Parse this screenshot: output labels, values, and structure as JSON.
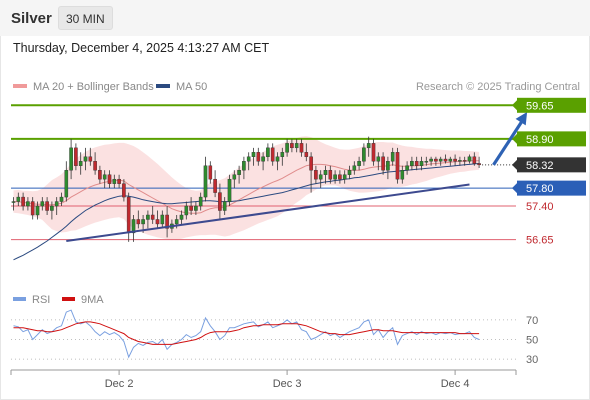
{
  "header": {
    "symbol": "Silver",
    "timeframe": "30 MIN",
    "datetime": "Thursday, December 4, 2025 4:13:27 AM CET"
  },
  "colors": {
    "resistance": "#5aa000",
    "support": "#e0606f",
    "pivot": "#2b5fb7",
    "current": "#333333",
    "trend": "#3d4a8f",
    "arrow": "#2e62b4",
    "bollinger": "#f7c8c8",
    "ma20": "#e08c8c",
    "ma50": "#2b4a80",
    "candle_up": "#2e8b2e",
    "candle_down": "#c0292f",
    "rsi": "#7aa0e0",
    "rsi_ma": "#d01010"
  },
  "chart_data": [
    {
      "type": "candlestick",
      "legend": [
        {
          "name": "MA 20 + Bollinger Bands",
          "color": "#f09a9a"
        },
        {
          "name": "MA 50",
          "color": "#2b4a80"
        }
      ],
      "legend_placement": "top-left",
      "credit": "Research © 2025 Trading Central",
      "ylim": [
        56.15,
        59.88
      ],
      "levels": [
        {
          "value": 59.65,
          "label": "59.65",
          "kind": "resistance"
        },
        {
          "value": 58.9,
          "label": "58.90",
          "kind": "resistance"
        },
        {
          "value": 58.32,
          "label": "58.32",
          "kind": "current"
        },
        {
          "value": 57.8,
          "label": "57.80",
          "kind": "pivot"
        },
        {
          "value": 57.4,
          "label": "57.40",
          "kind": "support"
        },
        {
          "value": 56.65,
          "label": "56.65",
          "kind": "support"
        }
      ],
      "trendline": {
        "from": [
          11,
          56.62
        ],
        "to": [
          95,
          57.88
        ]
      },
      "arrow": {
        "from": [
          100,
          58.32
        ],
        "to": [
          107,
          59.5
        ]
      },
      "xlabels": [
        {
          "index": 22,
          "label": "Dec 2"
        },
        {
          "index": 57,
          "label": "Dec 3"
        },
        {
          "index": 92,
          "label": "Dec 4"
        }
      ],
      "ohlc": [
        [
          57.5,
          57.6,
          57.3,
          57.5
        ],
        [
          57.5,
          57.7,
          57.4,
          57.6
        ],
        [
          57.6,
          57.7,
          57.3,
          57.4
        ],
        [
          57.4,
          57.6,
          57.3,
          57.5
        ],
        [
          57.5,
          57.6,
          57.1,
          57.2
        ],
        [
          57.2,
          57.5,
          57.1,
          57.4
        ],
        [
          57.4,
          57.6,
          57.3,
          57.5
        ],
        [
          57.5,
          57.6,
          57.2,
          57.3
        ],
        [
          57.3,
          57.5,
          57.1,
          57.4
        ],
        [
          57.4,
          57.6,
          57.2,
          57.5
        ],
        [
          57.5,
          57.7,
          57.4,
          57.6
        ],
        [
          57.6,
          58.4,
          57.5,
          58.2
        ],
        [
          58.2,
          58.9,
          58.0,
          58.7
        ],
        [
          58.7,
          58.8,
          58.2,
          58.3
        ],
        [
          58.3,
          58.6,
          58.1,
          58.4
        ],
        [
          58.4,
          58.7,
          58.2,
          58.5
        ],
        [
          58.5,
          58.7,
          58.3,
          58.4
        ],
        [
          58.4,
          58.6,
          58.1,
          58.2
        ],
        [
          58.2,
          58.3,
          57.9,
          58.0
        ],
        [
          58.0,
          58.2,
          57.8,
          58.1
        ],
        [
          58.1,
          58.2,
          57.8,
          57.9
        ],
        [
          57.9,
          58.1,
          57.8,
          58.0
        ],
        [
          58.0,
          58.1,
          57.8,
          57.9
        ],
        [
          57.9,
          58.0,
          57.5,
          57.6
        ],
        [
          57.6,
          57.7,
          56.6,
          56.8
        ],
        [
          56.8,
          57.2,
          56.6,
          57.1
        ],
        [
          57.1,
          57.3,
          56.9,
          57.0
        ],
        [
          57.0,
          57.2,
          56.8,
          57.1
        ],
        [
          57.1,
          57.3,
          56.9,
          57.2
        ],
        [
          57.2,
          57.4,
          57.0,
          57.1
        ],
        [
          57.1,
          57.3,
          56.9,
          57.0
        ],
        [
          57.0,
          57.3,
          56.9,
          57.2
        ],
        [
          57.2,
          57.4,
          56.7,
          56.9
        ],
        [
          56.9,
          57.1,
          56.8,
          57.0
        ],
        [
          57.0,
          57.2,
          56.9,
          57.1
        ],
        [
          57.1,
          57.3,
          57.0,
          57.2
        ],
        [
          57.2,
          57.5,
          57.1,
          57.4
        ],
        [
          57.4,
          57.6,
          57.2,
          57.3
        ],
        [
          57.3,
          57.5,
          57.2,
          57.4
        ],
        [
          57.4,
          57.7,
          57.3,
          57.6
        ],
        [
          57.6,
          58.5,
          57.5,
          58.3
        ],
        [
          58.3,
          58.4,
          57.9,
          58.0
        ],
        [
          58.0,
          58.2,
          57.6,
          57.7
        ],
        [
          57.7,
          57.9,
          57.1,
          57.3
        ],
        [
          57.3,
          57.6,
          57.2,
          57.5
        ],
        [
          57.5,
          58.1,
          57.4,
          58.0
        ],
        [
          58.0,
          58.2,
          57.8,
          58.1
        ],
        [
          58.1,
          58.3,
          57.9,
          58.2
        ],
        [
          58.2,
          58.5,
          58.0,
          58.4
        ],
        [
          58.4,
          58.6,
          58.2,
          58.5
        ],
        [
          58.5,
          58.7,
          58.3,
          58.6
        ],
        [
          58.6,
          58.7,
          58.3,
          58.4
        ],
        [
          58.4,
          58.6,
          58.2,
          58.5
        ],
        [
          58.5,
          58.8,
          58.4,
          58.7
        ],
        [
          58.7,
          58.8,
          58.3,
          58.4
        ],
        [
          58.4,
          58.6,
          58.2,
          58.5
        ],
        [
          58.5,
          58.7,
          58.3,
          58.6
        ],
        [
          58.6,
          58.9,
          58.5,
          58.8
        ],
        [
          58.8,
          58.9,
          58.6,
          58.7
        ],
        [
          58.7,
          58.9,
          58.6,
          58.8
        ],
        [
          58.8,
          58.9,
          58.5,
          58.6
        ],
        [
          58.6,
          58.8,
          58.4,
          58.5
        ],
        [
          58.5,
          58.6,
          57.7,
          58.2
        ],
        [
          58.2,
          58.3,
          57.9,
          58.0
        ],
        [
          58.0,
          58.2,
          57.8,
          58.1
        ],
        [
          58.1,
          58.3,
          57.9,
          58.2
        ],
        [
          58.2,
          58.3,
          57.9,
          58.0
        ],
        [
          58.0,
          58.2,
          57.9,
          58.1
        ],
        [
          58.1,
          58.2,
          57.9,
          58.0
        ],
        [
          58.0,
          58.2,
          57.9,
          58.1
        ],
        [
          58.1,
          58.3,
          58.0,
          58.2
        ],
        [
          58.2,
          58.4,
          58.1,
          58.3
        ],
        [
          58.3,
          58.5,
          58.2,
          58.4
        ],
        [
          58.4,
          58.8,
          58.3,
          58.7
        ],
        [
          58.7,
          58.95,
          58.5,
          58.8
        ],
        [
          58.8,
          58.9,
          58.3,
          58.4
        ],
        [
          58.4,
          58.6,
          58.2,
          58.5
        ],
        [
          58.5,
          58.6,
          58.1,
          58.2
        ],
        [
          58.2,
          58.5,
          58.0,
          58.4
        ],
        [
          58.4,
          58.7,
          58.3,
          58.6
        ],
        [
          58.6,
          58.7,
          57.9,
          58.0
        ],
        [
          58.0,
          58.3,
          57.9,
          58.2
        ],
        [
          58.2,
          58.4,
          58.1,
          58.3
        ],
        [
          58.3,
          58.5,
          58.2,
          58.4
        ],
        [
          58.4,
          58.5,
          58.2,
          58.3
        ],
        [
          58.3,
          58.5,
          58.2,
          58.4
        ],
        [
          58.4,
          58.5,
          58.3,
          58.4
        ],
        [
          58.4,
          58.5,
          58.3,
          58.45
        ],
        [
          58.45,
          58.5,
          58.3,
          58.4
        ],
        [
          58.4,
          58.5,
          58.3,
          58.45
        ],
        [
          58.45,
          58.55,
          58.35,
          58.4
        ],
        [
          58.4,
          58.5,
          58.3,
          58.45
        ],
        [
          58.45,
          58.55,
          58.3,
          58.4
        ],
        [
          58.4,
          58.5,
          58.3,
          58.42
        ],
        [
          58.42,
          58.5,
          58.3,
          58.4
        ],
        [
          58.4,
          58.55,
          58.35,
          58.5
        ],
        [
          58.5,
          58.6,
          58.3,
          58.35
        ],
        [
          58.35,
          58.5,
          58.25,
          58.32
        ]
      ],
      "ma50": [
        56.2,
        56.25,
        56.3,
        56.36,
        56.42,
        56.48,
        56.55,
        56.62,
        56.7,
        56.78,
        56.86,
        56.95,
        57.05,
        57.14,
        57.22,
        57.3,
        57.36,
        57.42,
        57.47,
        57.52,
        57.56,
        57.59,
        57.62,
        57.63,
        57.62,
        57.6,
        57.57,
        57.54,
        57.52,
        57.5,
        57.48,
        57.46,
        57.45,
        57.45,
        57.46,
        57.47,
        57.48,
        57.49,
        57.5,
        57.51,
        57.52,
        57.52,
        57.51,
        57.5,
        57.5,
        57.5,
        57.51,
        57.52,
        57.54,
        57.56,
        57.58,
        57.6,
        57.62,
        57.64,
        57.66,
        57.68,
        57.7,
        57.73,
        57.76,
        57.79,
        57.82,
        57.85,
        57.88,
        57.9,
        57.92,
        57.94,
        57.95,
        57.97,
        57.98,
        58.0,
        58.01,
        58.03,
        58.04,
        58.06,
        58.08,
        58.1,
        58.12,
        58.14,
        58.16,
        58.17,
        58.18,
        58.19,
        58.2,
        58.21,
        58.22,
        58.23,
        58.24,
        58.25,
        58.26,
        58.27,
        58.28,
        58.29,
        58.3,
        58.31,
        58.32,
        58.33,
        58.34,
        58.35
      ],
      "ma20": [
        57.5,
        57.5,
        57.48,
        57.47,
        57.45,
        57.44,
        57.44,
        57.43,
        57.43,
        57.44,
        57.46,
        57.52,
        57.6,
        57.66,
        57.72,
        57.78,
        57.83,
        57.87,
        57.9,
        57.93,
        57.95,
        57.97,
        57.98,
        57.96,
        57.88,
        57.82,
        57.76,
        57.7,
        57.64,
        57.58,
        57.52,
        57.46,
        57.4,
        57.34,
        57.3,
        57.27,
        57.25,
        57.24,
        57.24,
        57.25,
        57.3,
        57.34,
        57.36,
        57.36,
        57.37,
        57.42,
        57.48,
        57.54,
        57.6,
        57.66,
        57.72,
        57.78,
        57.83,
        57.88,
        57.93,
        57.97,
        58.02,
        58.08,
        58.14,
        58.2,
        58.25,
        58.3,
        58.32,
        58.33,
        58.33,
        58.32,
        58.3,
        58.28,
        58.25,
        58.22,
        58.2,
        58.2,
        58.2,
        58.22,
        58.25,
        58.27,
        58.28,
        58.29,
        58.3,
        58.32,
        58.3,
        58.29,
        58.29,
        58.3,
        58.3,
        58.31,
        58.32,
        58.34,
        58.35,
        58.36,
        58.37,
        58.38,
        58.39,
        58.4,
        58.4,
        58.41,
        58.41,
        58.41
      ],
      "bb_width": [
        0.25,
        0.26,
        0.26,
        0.27,
        0.28,
        0.3,
        0.35,
        0.45,
        0.55,
        0.6,
        0.65,
        0.7,
        0.75,
        0.8,
        0.82,
        0.83,
        0.84,
        0.84,
        0.84,
        0.84,
        0.83,
        0.83,
        0.83,
        0.85,
        0.9,
        0.92,
        0.92,
        0.9,
        0.88,
        0.85,
        0.82,
        0.78,
        0.74,
        0.7,
        0.65,
        0.6,
        0.55,
        0.52,
        0.5,
        0.5,
        0.55,
        0.58,
        0.6,
        0.62,
        0.65,
        0.68,
        0.7,
        0.72,
        0.74,
        0.75,
        0.76,
        0.77,
        0.78,
        0.79,
        0.8,
        0.8,
        0.78,
        0.76,
        0.74,
        0.72,
        0.7,
        0.66,
        0.62,
        0.56,
        0.5,
        0.46,
        0.44,
        0.42,
        0.42,
        0.44,
        0.46,
        0.48,
        0.5,
        0.52,
        0.54,
        0.55,
        0.55,
        0.54,
        0.52,
        0.5,
        0.48,
        0.46,
        0.44,
        0.42,
        0.4,
        0.38,
        0.36,
        0.34,
        0.32,
        0.3,
        0.28,
        0.26,
        0.25,
        0.24,
        0.23,
        0.22,
        0.21,
        0.2
      ]
    },
    {
      "type": "line",
      "legend": [
        {
          "name": "RSI",
          "color": "#7aa0e0"
        },
        {
          "name": "9MA",
          "color": "#d01010"
        }
      ],
      "ylim": [
        25,
        75
      ],
      "yticks": [
        70,
        50,
        30
      ],
      "rsi": [
        64,
        63,
        58,
        60,
        50,
        55,
        60,
        56,
        58,
        62,
        64,
        78,
        80,
        68,
        66,
        68,
        64,
        58,
        54,
        58,
        55,
        57,
        54,
        48,
        32,
        42,
        46,
        44,
        47,
        48,
        45,
        50,
        40,
        45,
        47,
        50,
        55,
        52,
        54,
        58,
        72,
        64,
        58,
        50,
        54,
        62,
        62,
        64,
        66,
        67,
        68,
        63,
        65,
        68,
        62,
        64,
        66,
        70,
        66,
        68,
        60,
        58,
        50,
        52,
        55,
        58,
        54,
        56,
        52,
        55,
        58,
        60,
        62,
        68,
        70,
        55,
        60,
        52,
        58,
        62,
        45,
        54,
        56,
        58,
        55,
        58,
        56,
        57,
        55,
        57,
        56,
        57,
        55,
        56,
        56,
        58,
        52,
        50
      ],
      "rsi_ma": [
        62,
        62,
        62,
        61,
        60,
        59,
        59,
        58,
        58,
        59,
        60,
        62,
        64,
        66,
        67,
        68,
        68,
        67,
        66,
        64,
        62,
        60,
        58,
        56,
        52,
        50,
        48,
        47,
        46,
        45,
        45,
        45,
        45,
        45,
        46,
        47,
        48,
        49,
        50,
        52,
        55,
        57,
        58,
        58,
        58,
        58,
        59,
        60,
        62,
        63,
        64,
        64,
        65,
        65,
        65,
        65,
        66,
        66,
        66,
        66,
        65,
        64,
        62,
        60,
        58,
        57,
        56,
        56,
        55,
        55,
        55,
        56,
        57,
        58,
        59,
        60,
        60,
        59,
        59,
        59,
        58,
        57,
        57,
        57,
        57,
        57,
        57,
        57,
        57,
        57,
        57,
        57,
        57,
        56,
        56,
        56,
        56,
        56
      ]
    }
  ]
}
